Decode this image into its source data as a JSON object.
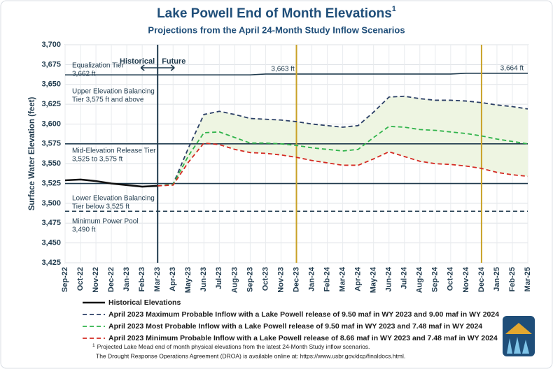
{
  "chart_data": {
    "type": "line",
    "title": "Lake Powell End of Month Elevations",
    "footnote_mark": "1",
    "subtitle": "Projections from the April 24-Month Study Inflow Scenarios",
    "y_label": "Surface Water Elevation (feet)",
    "categories": [
      "Sep-22",
      "Oct-22",
      "Nov-22",
      "Dec-22",
      "Jan-23",
      "Feb-23",
      "Mar-23",
      "Apr-23",
      "May-23",
      "Jun-23",
      "Jul-23",
      "Aug-23",
      "Sep-23",
      "Oct-23",
      "Nov-23",
      "Dec-23",
      "Jan-24",
      "Feb-24",
      "Mar-24",
      "Apr-24",
      "May-24",
      "Jun-24",
      "Jul-24",
      "Aug-24",
      "Sep-24",
      "Oct-24",
      "Nov-24",
      "Dec-24",
      "Jan-25",
      "Feb-25",
      "Mar-25"
    ],
    "ylim": [
      3425,
      3700
    ],
    "yticks": [
      {
        "value": 3425,
        "label": "3,425"
      },
      {
        "value": 3450,
        "label": "3,450"
      },
      {
        "value": 3475,
        "label": "3,475"
      },
      {
        "value": 3500,
        "label": "3,500"
      },
      {
        "value": 3525,
        "label": "3,525"
      },
      {
        "value": 3550,
        "label": "3,550"
      },
      {
        "value": 3575,
        "label": "3,575"
      },
      {
        "value": 3600,
        "label": "3,600"
      },
      {
        "value": 3625,
        "label": "3,625"
      },
      {
        "value": 3650,
        "label": "3,650"
      },
      {
        "value": 3675,
        "label": "3,675"
      },
      {
        "value": 3700,
        "label": "3,700"
      }
    ],
    "grid": true,
    "series": [
      {
        "name": "Historical Elevations",
        "color": "#111111",
        "dash": false,
        "values": [
          3529,
          3530,
          3528,
          3525,
          3523,
          3521,
          3522,
          null,
          null,
          null,
          null,
          null,
          null,
          null,
          null,
          null,
          null,
          null,
          null,
          null,
          null,
          null,
          null,
          null,
          null,
          null,
          null,
          null,
          null,
          null,
          null
        ]
      },
      {
        "name": "April 2023 Maximum Probable Inflow with a Lake Powell release of 9.50 maf in WY 2023 and 9.00 maf in WY 2024",
        "color": "#2b3f66",
        "dash": true,
        "values": [
          null,
          null,
          null,
          null,
          null,
          null,
          3522,
          3524,
          3570,
          3612,
          3616,
          3612,
          3607,
          3606,
          3605,
          3603,
          3600,
          3598,
          3596,
          3598,
          3615,
          3634,
          3635,
          3632,
          3630,
          3630,
          3629,
          3627,
          3624,
          3622,
          3619
        ]
      },
      {
        "name": "April 2023 Most Probable Inflow with a Lake Powell release of 9.50 maf in WY 2023 and 7.48 maf in WY 2024",
        "color": "#2fb34a",
        "dash": true,
        "values": [
          null,
          null,
          null,
          null,
          null,
          null,
          3522,
          3524,
          3560,
          3589,
          3590,
          3583,
          3576,
          3576,
          3575,
          3573,
          3570,
          3568,
          3566,
          3568,
          3583,
          3597,
          3596,
          3593,
          3592,
          3590,
          3588,
          3585,
          3581,
          3578,
          3575
        ]
      },
      {
        "name": "April 2023 Minimum Probable Inflow with a Lake Powell release of 8.66 maf in WY 2023 and 7.48 maf in WY 2024",
        "color": "#d42a22",
        "dash": true,
        "values": [
          null,
          null,
          null,
          null,
          null,
          null,
          3522,
          3523,
          3552,
          3576,
          3574,
          3568,
          3564,
          3563,
          3561,
          3558,
          3554,
          3551,
          3548,
          3548,
          3556,
          3565,
          3559,
          3553,
          3550,
          3549,
          3547,
          3544,
          3539,
          3536,
          3534
        ]
      }
    ],
    "band_color": "#eef5e2",
    "equalization": {
      "color": "#1f3a4d",
      "values": [
        3662,
        3662,
        3662,
        3662,
        3662,
        3662,
        3662,
        3662,
        3662,
        3662,
        3662,
        3662,
        3662,
        3663,
        3663,
        3663,
        3663,
        3663,
        3663,
        3663,
        3663,
        3663,
        3663,
        3663,
        3663,
        3663,
        3664,
        3664,
        3664,
        3664,
        3664
      ],
      "labels": [
        {
          "value": 3663,
          "label": "3,663 ft"
        },
        {
          "value": 3664,
          "label": "3,664 ft"
        }
      ]
    },
    "reference_lines": [
      {
        "value": 3575,
        "dash": false
      },
      {
        "value": 3525,
        "dash": false
      },
      {
        "value": 3490,
        "dash": true
      }
    ],
    "reference_color": "#1f3a4d",
    "zones": [
      [
        "Equalization Tier",
        "3,662 ft"
      ],
      [
        "Upper Elevation Balancing",
        "Tier 3,575 ft and above"
      ],
      [
        "Mid-Elevation Release Tier",
        "3,525 to 3,575 ft"
      ],
      [
        "Lower Elevation Balancing",
        "Tier below 3,525 ft"
      ],
      [
        "Minimum Power Pool",
        "3,490 ft"
      ]
    ],
    "vlines": [
      {
        "category": "Mar-23",
        "color": "#1f3a4d"
      },
      {
        "category": "Dec-23",
        "color": "#c9a227"
      },
      {
        "category": "Dec-24",
        "color": "#c9a227"
      }
    ],
    "historical_label": "Historical",
    "future_label": "Future",
    "footnotes": [
      "Projected Lake Mead end of month physical elevations from the latest 24-Month Study inflow scenarios.",
      "The Drought Response Operations Agreement (DROA) is available online at: https://www.usbr.gov/dcp/finaldocs.html."
    ]
  }
}
